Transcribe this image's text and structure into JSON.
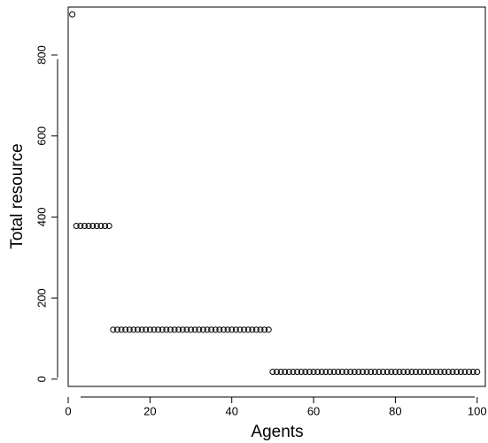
{
  "chart_data": {
    "type": "scatter",
    "title": "",
    "xlabel": "Agents",
    "ylabel": "Total resource",
    "xlim": [
      0,
      102
    ],
    "ylim": [
      -18,
      918
    ],
    "x_ticks": [
      0,
      20,
      40,
      60,
      80,
      100
    ],
    "y_ticks": [
      0,
      200,
      400,
      600,
      800
    ],
    "grid": false,
    "legend": "none",
    "marker": "open-circle",
    "segments": [
      {
        "x_from": 1,
        "x_to": 1,
        "y": 900
      },
      {
        "x_from": 2,
        "x_to": 10,
        "y": 378
      },
      {
        "x_from": 11,
        "x_to": 49,
        "y": 122
      },
      {
        "x_from": 50,
        "x_to": 100,
        "y": 18
      }
    ]
  }
}
